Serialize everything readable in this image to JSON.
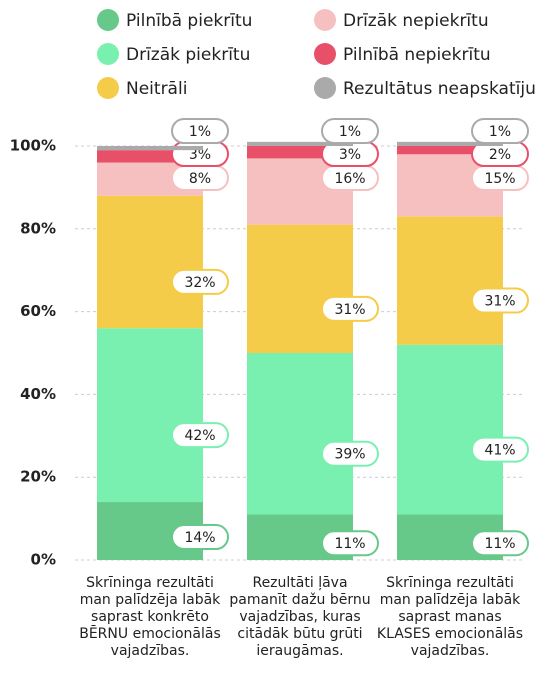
{
  "chart_data": {
    "type": "stacked_bar",
    "categories": [
      "Skrīninga rezultāti man palīdzēja labāk saprast konkrēto BĒRNU emocionālās vajadzības.",
      "Rezultāti ļāva pamanīt dažu bērnu vajadzības, kuras citādāk būtu grūti ieraugāmas.",
      "Skrīninga rezultāti man palīdzēja labāk saprast manas KLASES emocionālās vajadzības."
    ],
    "series": [
      {
        "name": "Pilnībā piekrītu",
        "color": "#66c98a",
        "values": [
          14,
          11,
          11
        ],
        "value_labels": [
          "14%",
          "11%",
          "11%"
        ]
      },
      {
        "name": "Drīzāk piekrītu",
        "color": "#7af0b0",
        "values": [
          42,
          39,
          41
        ],
        "value_labels": [
          "42%",
          "39%",
          "41%"
        ]
      },
      {
        "name": "Neitrāli",
        "color": "#f5cb4a",
        "values": [
          32,
          31,
          31
        ],
        "value_labels": [
          "32%",
          "31%",
          "31%"
        ]
      },
      {
        "name": "Drīzāk nepiekrītu",
        "color": "#f7c0c0",
        "values": [
          8,
          16,
          15
        ],
        "value_labels": [
          "8%",
          "16%",
          "15%"
        ]
      },
      {
        "name": "Pilnībā nepiekrītu",
        "color": "#e8506a",
        "values": [
          3,
          3,
          2
        ],
        "value_labels": [
          "3%",
          "3%",
          "2%"
        ]
      },
      {
        "name": "Rezultātus neapskatīju",
        "color": "#aaaaaa",
        "values": [
          1,
          1,
          1
        ],
        "value_labels": [
          "1%",
          "1%",
          "1%"
        ]
      }
    ],
    "ylim": [
      0,
      102
    ],
    "yticks": [
      {
        "value": 0,
        "label": "0%"
      },
      {
        "value": 20,
        "label": "20%"
      },
      {
        "value": 40,
        "label": "40%"
      },
      {
        "value": 60,
        "label": "60%"
      },
      {
        "value": 80,
        "label": "80%"
      },
      {
        "value": 100,
        "label": "100%"
      }
    ],
    "grid": true,
    "legend": "top"
  }
}
